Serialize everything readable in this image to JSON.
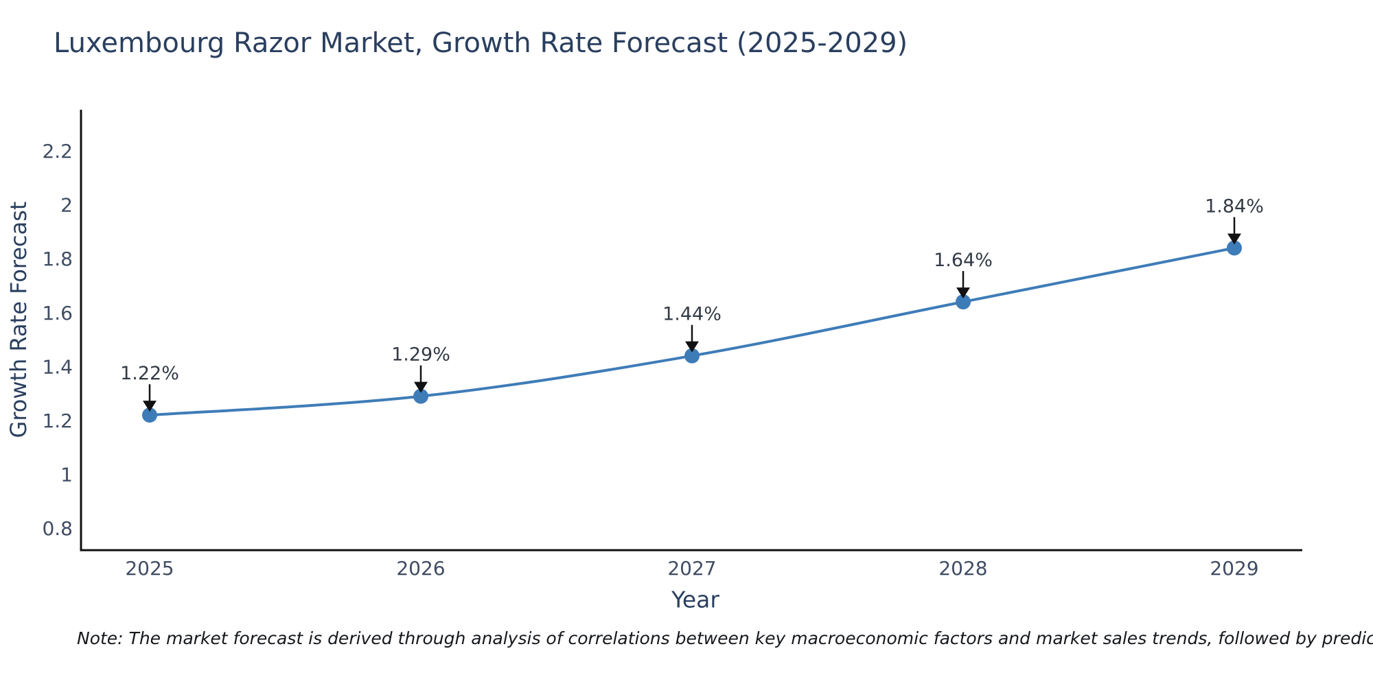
{
  "chart_data": {
    "type": "line",
    "title": "Luxembourg Razor Market, Growth Rate Forecast (2025-2029)",
    "xlabel": "Year",
    "ylabel": "Growth Rate Forecast",
    "categories": [
      "2025",
      "2026",
      "2027",
      "2028",
      "2029"
    ],
    "series": [
      {
        "name": "Growth Rate Forecast",
        "values": [
          1.22,
          1.29,
          1.44,
          1.64,
          1.84
        ]
      }
    ],
    "point_labels": [
      "1.22%",
      "1.29%",
      "1.44%",
      "1.64%",
      "1.84%"
    ],
    "yticks": [
      0.8,
      1,
      1.2,
      1.4,
      1.6,
      1.8,
      2,
      2.2
    ],
    "ylim": [
      0.72,
      2.36
    ],
    "grid": false,
    "legend_position": "none",
    "line_shape": "spline",
    "colors": {
      "line": "#3e7cb8",
      "marker": "#3e7cb8",
      "axis": "#101010",
      "tick_text": "#3f4c63",
      "title_text": "#2a3f5f",
      "annotation_text": "#333a45",
      "arrow": "#111111",
      "background": "#ffffff"
    }
  },
  "note": {
    "text": "Note: The market forecast is derived through analysis of correlations between key macroeconomic factors and market sales trends, followed by predictive modeling to project future sales"
  }
}
